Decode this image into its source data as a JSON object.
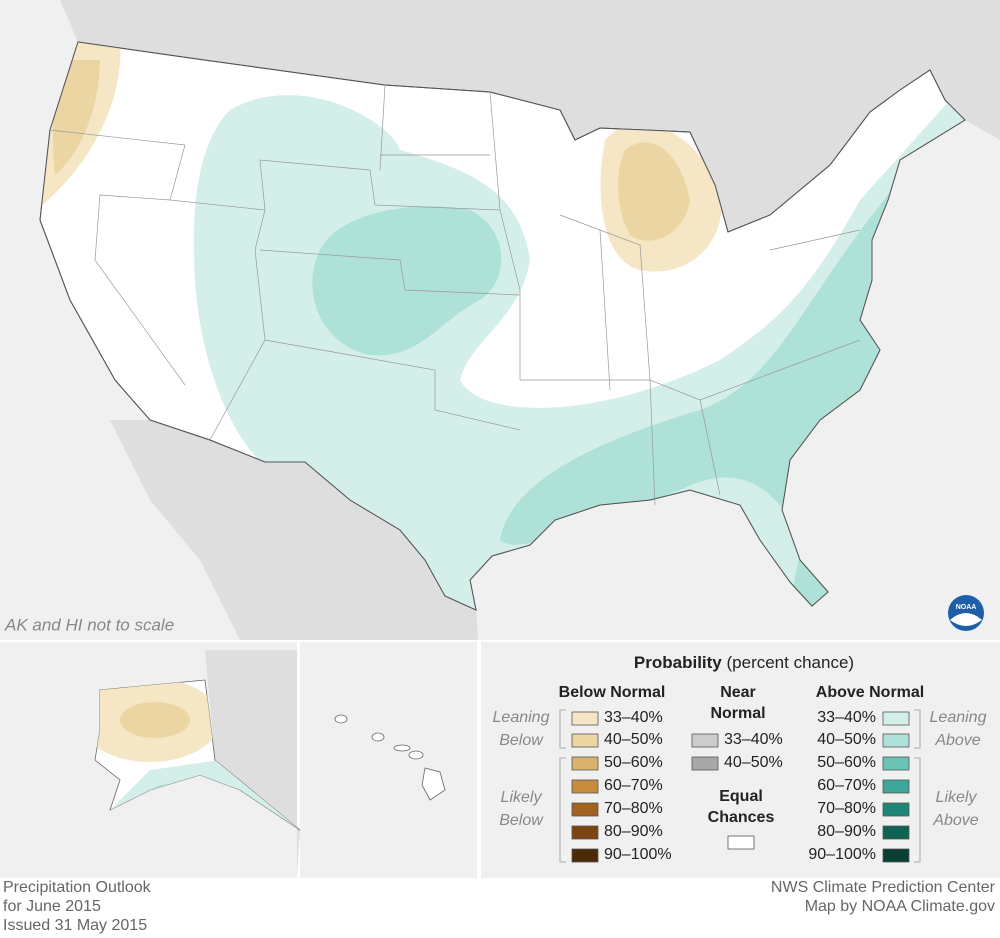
{
  "map": {
    "note": "AK and HI not to scale",
    "logo": "NOAA"
  },
  "legend": {
    "title": "Probability",
    "title_suffix": "(percent chance)",
    "below": {
      "heading": "Below Normal",
      "leaning_label": [
        "Leaning",
        "Below"
      ],
      "likely_label": [
        "Likely",
        "Below"
      ],
      "items": [
        {
          "label": "33–40%",
          "color": "#f5e7c6"
        },
        {
          "label": "40–50%",
          "color": "#ebd6a3"
        },
        {
          "label": "50–60%",
          "color": "#d9b36e"
        },
        {
          "label": "60–70%",
          "color": "#c68c3e"
        },
        {
          "label": "70–80%",
          "color": "#a3621f"
        },
        {
          "label": "80–90%",
          "color": "#7b4511"
        },
        {
          "label": "90–100%",
          "color": "#4e2b07"
        }
      ]
    },
    "near": {
      "heading": [
        "Near",
        "Normal"
      ],
      "items": [
        {
          "label": "33–40%",
          "color": "#cccccc"
        },
        {
          "label": "40–50%",
          "color": "#a8a8a8"
        }
      ]
    },
    "equal": {
      "heading": [
        "Equal",
        "Chances"
      ],
      "color": "#ffffff"
    },
    "above": {
      "heading": "Above Normal",
      "leaning_label": [
        "Leaning",
        "Above"
      ],
      "likely_label": [
        "Likely",
        "Above"
      ],
      "items": [
        {
          "label": "33–40%",
          "color": "#d4efea"
        },
        {
          "label": "40–50%",
          "color": "#aee2d9"
        },
        {
          "label": "50–60%",
          "color": "#6cc4b6"
        },
        {
          "label": "60–70%",
          "color": "#3ea698"
        },
        {
          "label": "70–80%",
          "color": "#1f8577"
        },
        {
          "label": "80–90%",
          "color": "#0f6254"
        },
        {
          "label": "90–100%",
          "color": "#073f35"
        }
      ]
    }
  },
  "footer": {
    "left": [
      "Precipitation Outlook",
      "for June 2015",
      "Issued 31 May 2015"
    ],
    "right": [
      "NWS Climate Prediction Center",
      "Map by NOAA Climate.gov"
    ]
  }
}
